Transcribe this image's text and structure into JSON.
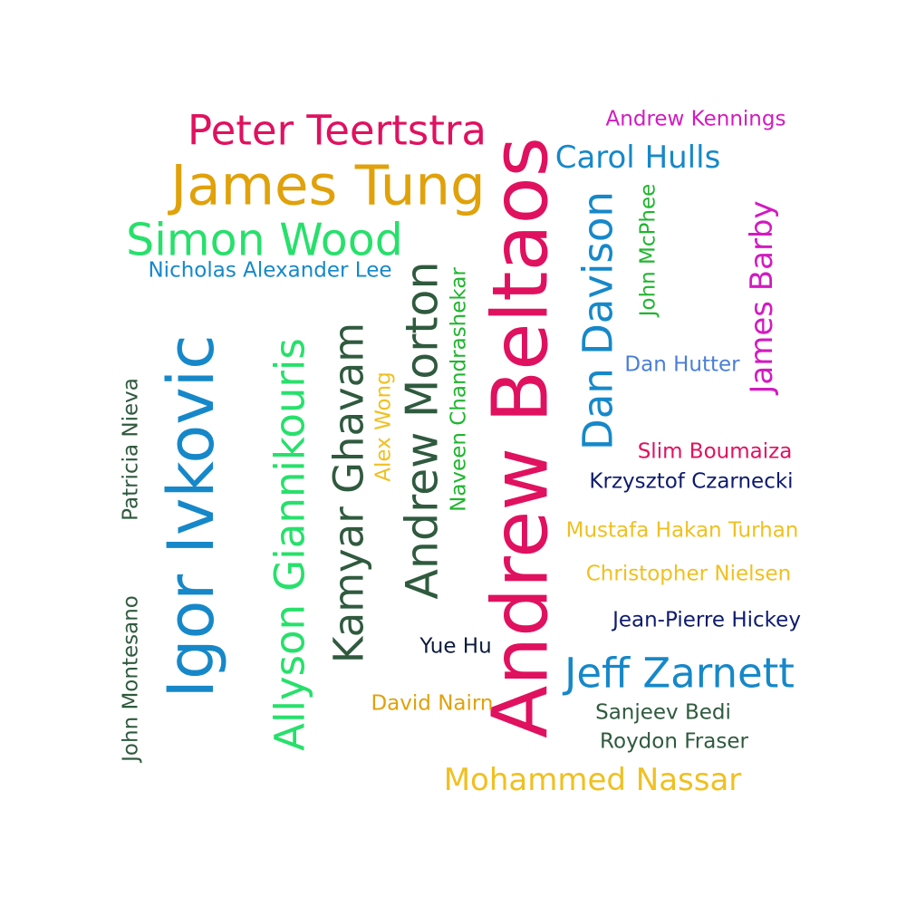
{
  "words": [
    {
      "id": "peter-teertstra",
      "text": "Peter Teertstra",
      "color": "#e0115f"
    },
    {
      "id": "james-tung",
      "text": "James Tung",
      "color": "#e0a10a"
    },
    {
      "id": "simon-wood",
      "text": "Simon Wood",
      "color": "#27e06b"
    },
    {
      "id": "nicholas-alexander-lee",
      "text": "Nicholas Alexander Lee",
      "color": "#1688c9"
    },
    {
      "id": "andrew-kennings",
      "text": "Andrew Kennings",
      "color": "#d21bc0"
    },
    {
      "id": "carol-hulls",
      "text": "Carol Hulls",
      "color": "#1688c9"
    },
    {
      "id": "andrew-beltaos",
      "text": "Andrew Beltaos",
      "color": "#e0115f"
    },
    {
      "id": "dan-davison",
      "text": "Dan Davison",
      "color": "#1688c9"
    },
    {
      "id": "john-mcphee",
      "text": "John McPhee",
      "color": "#1fb52e"
    },
    {
      "id": "james-barby",
      "text": "James Barby",
      "color": "#d21bc0"
    },
    {
      "id": "dan-hutter",
      "text": "Dan Hutter",
      "color": "#4a7fd6"
    },
    {
      "id": "igor-ivkovic",
      "text": "Igor Ivkovic",
      "color": "#1688c9"
    },
    {
      "id": "allyson-giannikouris",
      "text": "Allyson Giannikouris",
      "color": "#27e06b"
    },
    {
      "id": "kamyar-ghavam",
      "text": "Kamyar Ghavam",
      "color": "#2f5a3e"
    },
    {
      "id": "alex-wong",
      "text": "Alex Wong",
      "color": "#f0c020"
    },
    {
      "id": "andrew-morton",
      "text": "Andrew Morton",
      "color": "#2f5a3e"
    },
    {
      "id": "naveen-chandrashekar",
      "text": "Naveen Chandrashekar",
      "color": "#1fb52e"
    },
    {
      "id": "patricia-nieva",
      "text": "Patricia Nieva",
      "color": "#2f5a3e"
    },
    {
      "id": "john-montesano",
      "text": "John Montesano",
      "color": "#2f5a3e"
    },
    {
      "id": "slim-boumaiza",
      "text": "Slim Boumaiza",
      "color": "#e0115f"
    },
    {
      "id": "krzysztof-czarnecki",
      "text": "Krzysztof Czarnecki",
      "color": "#0d1b6e"
    },
    {
      "id": "mustafa-hakan-turhan",
      "text": "Mustafa Hakan Turhan",
      "color": "#f0c020"
    },
    {
      "id": "christopher-nielsen",
      "text": "Christopher Nielsen",
      "color": "#f0c020"
    },
    {
      "id": "jean-pierre-hickey",
      "text": "Jean-Pierre Hickey",
      "color": "#0d1b6e"
    },
    {
      "id": "yue-hu",
      "text": "Yue Hu",
      "color": "#0d1b3a"
    },
    {
      "id": "jeff-zarnett",
      "text": "Jeff Zarnett",
      "color": "#1688c9"
    },
    {
      "id": "david-nairn",
      "text": "David Nairn",
      "color": "#e0a10a"
    },
    {
      "id": "sanjeev-bedi",
      "text": "Sanjeev Bedi",
      "color": "#2f5a3e"
    },
    {
      "id": "roydon-fraser",
      "text": "Roydon Fraser",
      "color": "#2f5a3e"
    },
    {
      "id": "mohammed-nassar",
      "text": "Mohammed Nassar",
      "color": "#f0c020"
    }
  ]
}
